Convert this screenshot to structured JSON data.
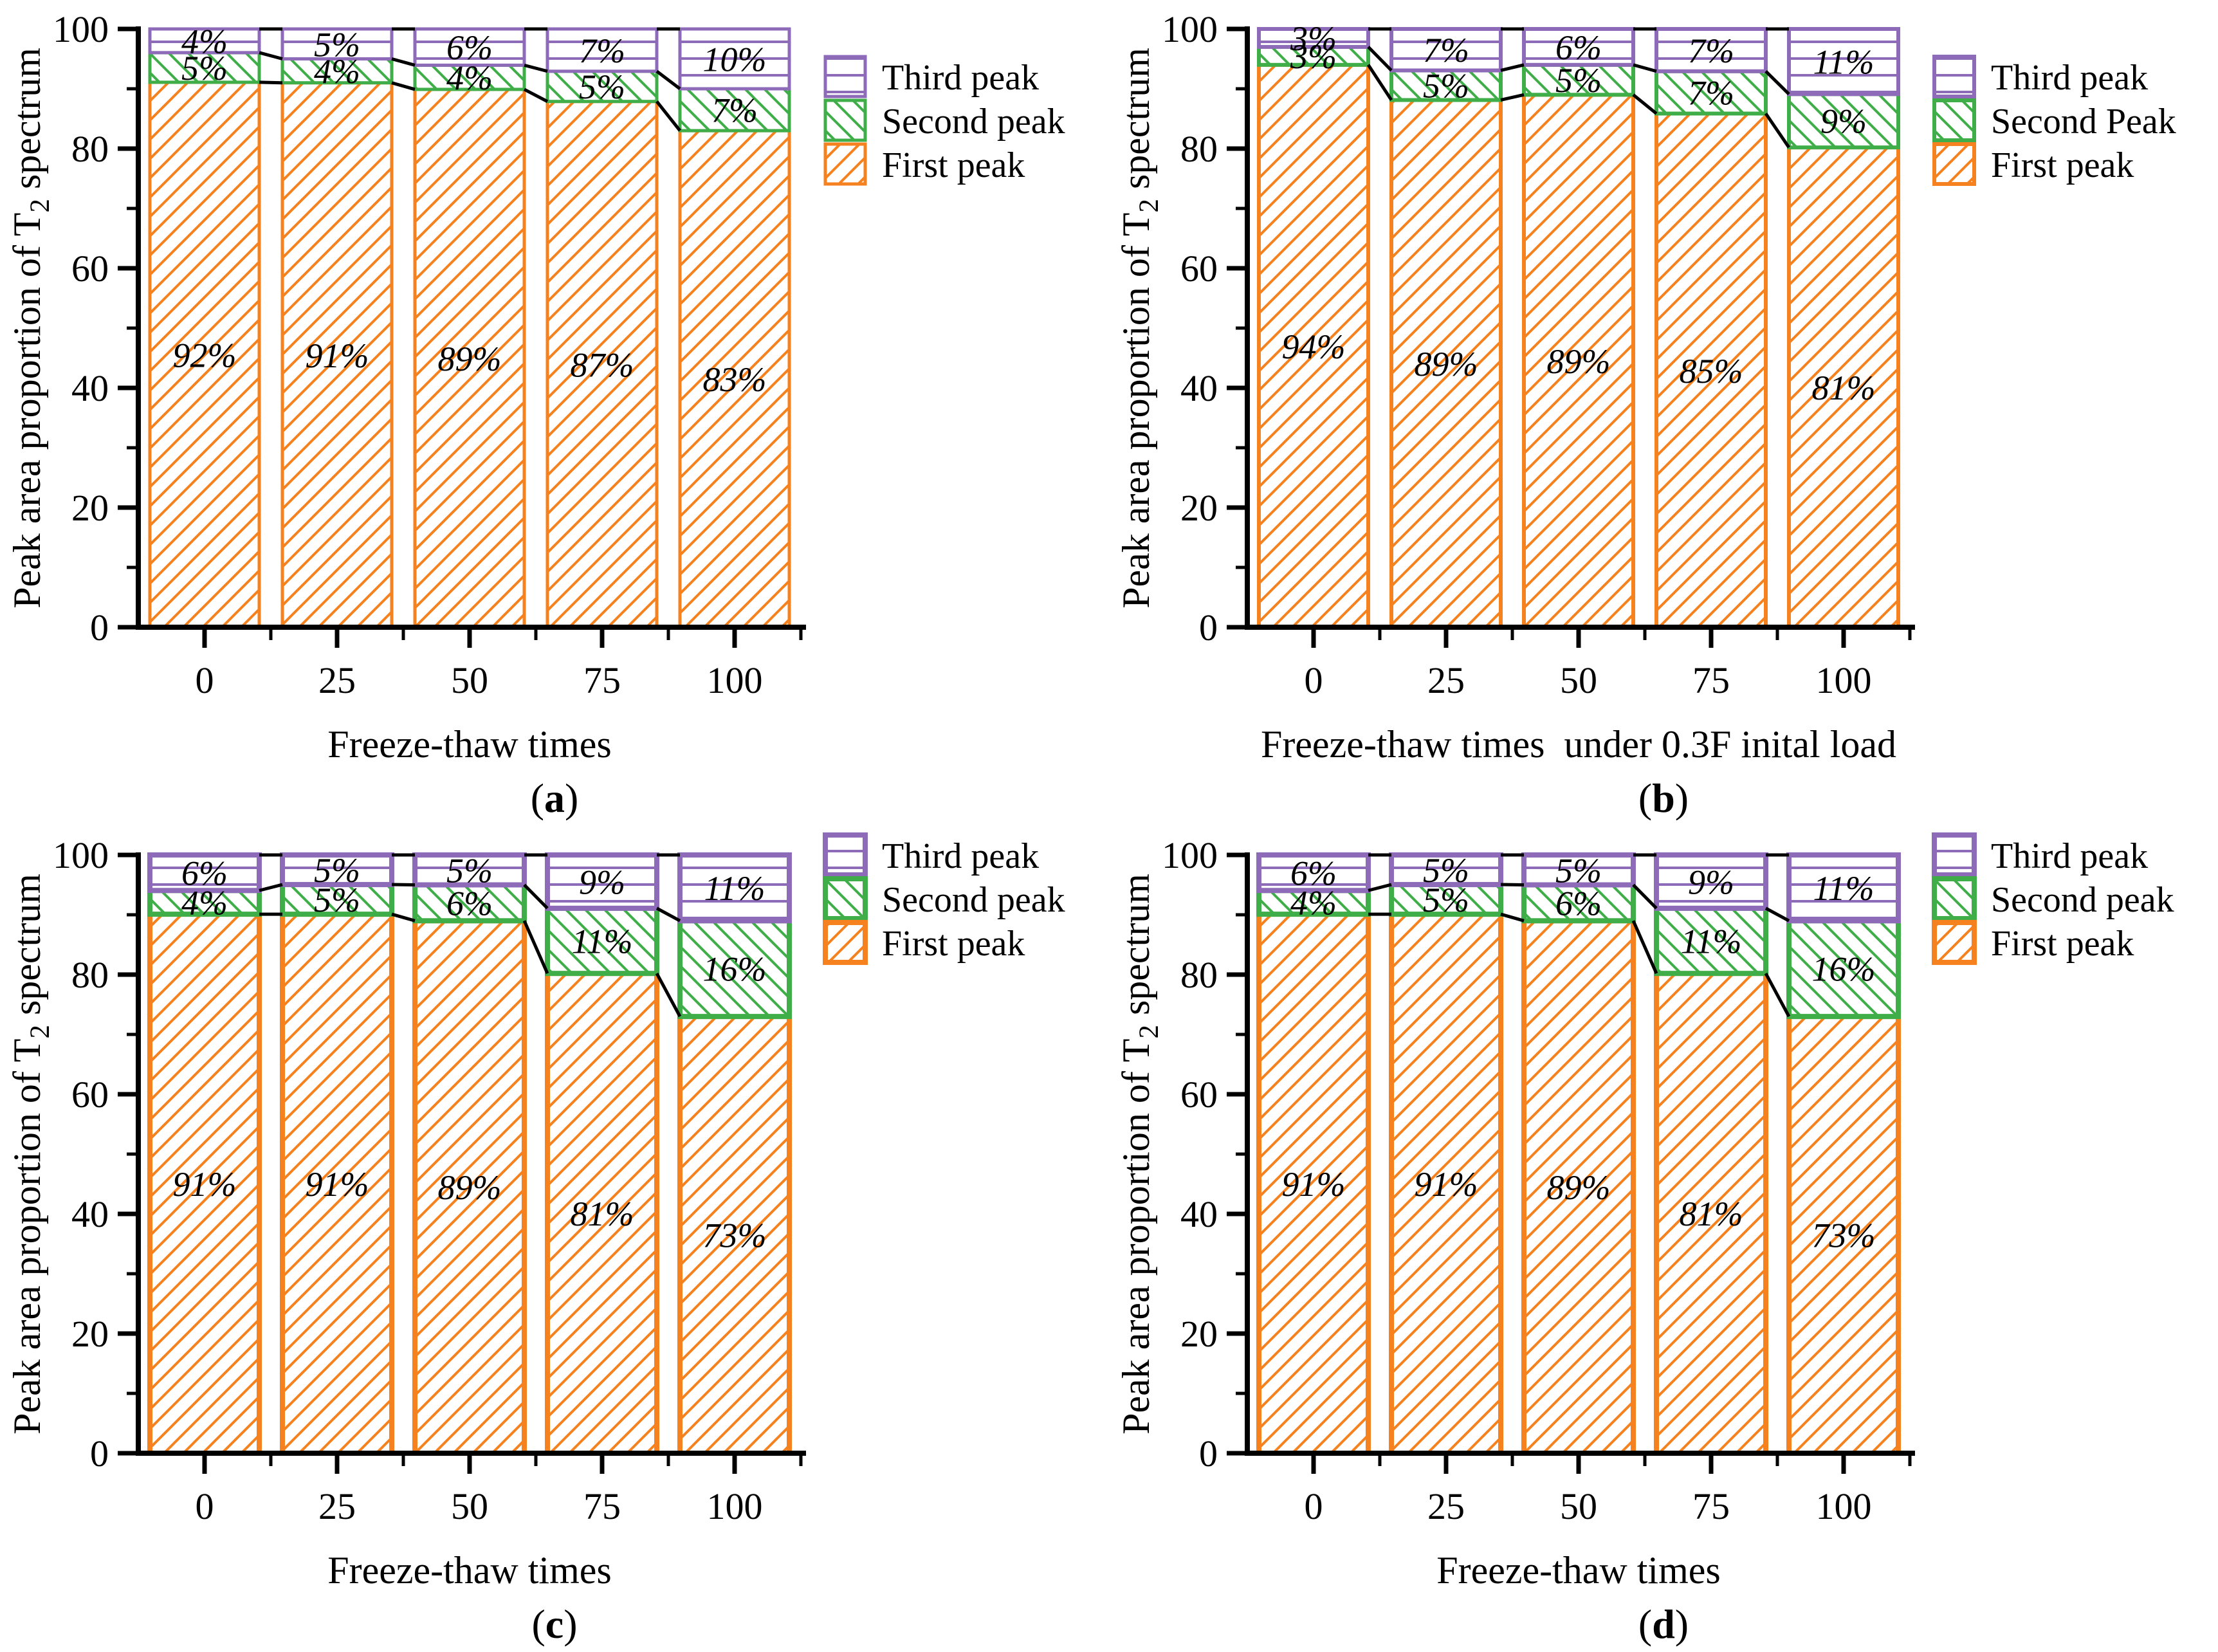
{
  "page": {
    "background": "#ffffff"
  },
  "style": {
    "colors": {
      "first_peak": "#F5821F",
      "second_peak": "#3FAE49",
      "third_peak": "#8E6BB8",
      "axis": "#000000",
      "connector": "#000000",
      "text": "#000000"
    },
    "hatch_spacing": 30,
    "hatch_stroke": 4,
    "hline_spacing": 26,
    "hline_stroke": 4
  },
  "shared": {
    "ylabel": {
      "pre": "Peak area proportion of T",
      "sub": "2",
      "post": " spectrum"
    },
    "yaxis": {
      "ylim": [
        0,
        100
      ],
      "major_ticks": [
        0,
        20,
        40,
        60,
        80,
        100
      ],
      "minor_ticks": [
        10,
        30,
        50,
        70,
        90
      ]
    }
  },
  "chart_data": [
    {
      "panel": "a",
      "type": "bar",
      "stacked": true,
      "caption": {
        "open": "(",
        "letter": "a",
        "close": ")"
      },
      "xlabel": "Freeze-thaw times",
      "categories": [
        "0",
        "25",
        "50",
        "75",
        "100"
      ],
      "series": [
        {
          "key": "first",
          "name": "First peak",
          "values": [
            92,
            91,
            89,
            87,
            83
          ],
          "labels": [
            "92%",
            "91%",
            "89%",
            "87%",
            "83%"
          ]
        },
        {
          "key": "second",
          "name": "Second peak",
          "values": [
            5,
            4,
            4,
            5,
            7
          ],
          "labels": [
            "5%",
            "4%",
            "4%",
            "5%",
            "7%"
          ]
        },
        {
          "key": "third",
          "name": "Third peak",
          "values": [
            4,
            5,
            6,
            7,
            10
          ],
          "labels": [
            "4%",
            "5%",
            "6%",
            "7%",
            "10%"
          ]
        }
      ],
      "legend": [
        {
          "key": "third",
          "label": "Third peak"
        },
        {
          "key": "second",
          "label": "Second peak"
        },
        {
          "key": "first",
          "label": "First peak"
        }
      ],
      "border_width": 5,
      "legend_y": 88
    },
    {
      "panel": "b",
      "type": "bar",
      "stacked": true,
      "caption": {
        "open": "(",
        "letter": "b",
        "close": ")"
      },
      "xlabel": "Freeze-thaw times  under 0.3F inital load",
      "categories": [
        "0",
        "25",
        "50",
        "75",
        "100"
      ],
      "series": [
        {
          "key": "first",
          "name": "First peak",
          "values": [
            94,
            89,
            89,
            85,
            81
          ],
          "labels": [
            "94%",
            "89%",
            "89%",
            "85%",
            "81%"
          ]
        },
        {
          "key": "second",
          "name": "Second Peak",
          "values": [
            3,
            5,
            5,
            7,
            9
          ],
          "labels": [
            "3%",
            "5%",
            "5%",
            "7%",
            "9%"
          ]
        },
        {
          "key": "third",
          "name": "Third peak",
          "values": [
            3,
            7,
            6,
            7,
            11
          ],
          "labels": [
            "3%",
            "7%",
            "6%",
            "7%",
            "11%"
          ]
        }
      ],
      "legend": [
        {
          "key": "third",
          "label": "Third peak"
        },
        {
          "key": "second",
          "label": "Second Peak"
        },
        {
          "key": "first",
          "label": "First peak"
        }
      ],
      "border_width": 6,
      "legend_y": 88
    },
    {
      "panel": "c",
      "type": "bar",
      "stacked": true,
      "caption": {
        "open": "(",
        "letter": "c",
        "close": ")"
      },
      "xlabel": "Freeze-thaw times",
      "categories": [
        "0",
        "25",
        "50",
        "75",
        "100"
      ],
      "series": [
        {
          "key": "first",
          "name": "First peak",
          "values": [
            91,
            91,
            89,
            81,
            73
          ],
          "labels": [
            "91%",
            "91%",
            "89%",
            "81%",
            "73%"
          ]
        },
        {
          "key": "second",
          "name": "Second peak",
          "values": [
            4,
            5,
            6,
            11,
            16
          ],
          "labels": [
            "4%",
            "5%",
            "6%",
            "11%",
            "16%"
          ]
        },
        {
          "key": "third",
          "name": "Third peak",
          "values": [
            6,
            5,
            5,
            9,
            11
          ],
          "labels": [
            "6%",
            "5%",
            "5%",
            "9%",
            "11%"
          ]
        }
      ],
      "legend": [
        {
          "key": "third",
          "label": "Third peak"
        },
        {
          "key": "second",
          "label": "Second peak"
        },
        {
          "key": "first",
          "label": "First peak"
        }
      ],
      "border_width": 8,
      "legend_y": 14
    },
    {
      "panel": "d",
      "type": "bar",
      "stacked": true,
      "caption": {
        "open": "(",
        "letter": "d",
        "close": ")"
      },
      "xlabel": "Freeze-thaw times",
      "categories": [
        "0",
        "25",
        "50",
        "75",
        "100"
      ],
      "series": [
        {
          "key": "first",
          "name": "First peak",
          "values": [
            91,
            91,
            89,
            81,
            73
          ],
          "labels": [
            "91%",
            "91%",
            "89%",
            "81%",
            "73%"
          ]
        },
        {
          "key": "second",
          "name": "Second peak",
          "values": [
            4,
            5,
            6,
            11,
            16
          ],
          "labels": [
            "4%",
            "5%",
            "6%",
            "11%",
            "16%"
          ]
        },
        {
          "key": "third",
          "name": "Third peak",
          "values": [
            6,
            5,
            5,
            9,
            11
          ],
          "labels": [
            "6%",
            "5%",
            "5%",
            "9%",
            "11%"
          ]
        }
      ],
      "legend": [
        {
          "key": "third",
          "label": "Third peak"
        },
        {
          "key": "second",
          "label": "Second peak"
        },
        {
          "key": "first",
          "label": "First peak"
        }
      ],
      "border_width": 8,
      "legend_y": 14
    }
  ]
}
